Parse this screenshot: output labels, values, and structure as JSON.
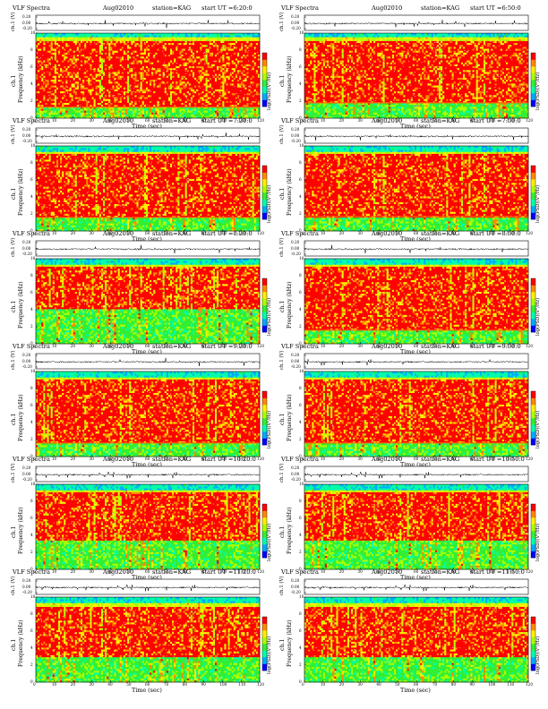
{
  "header": {
    "title": "VLF Spectra",
    "date": "Aug02010",
    "station": "station=KAG",
    "start_prefix": "start UT ="
  },
  "chart_data": [
    {
      "type": "heatmap",
      "start_ut": "6:20:0",
      "xlabel": "Time (sec)",
      "ylabel": "Frequency (kHz)",
      "ch_label": "ch.1",
      "line_ylabel": "ch.1 (V)",
      "colorbar_label": "log(PSD)(V²/Hz)",
      "xlim": [
        0,
        120
      ],
      "ylim": [
        0,
        10
      ],
      "xticks": [
        0,
        10,
        20,
        30,
        40,
        50,
        60,
        70,
        80,
        90,
        100,
        110,
        120
      ],
      "yticks": [
        0,
        2,
        4,
        6,
        8,
        10
      ],
      "line_yticks": [
        "0.20",
        "0.00",
        "-0.20"
      ],
      "colormap": [
        "#0000ff",
        "#00aaff",
        "#00ffaa",
        "#33ee33",
        "#aaff00",
        "#ffee00",
        "#ff8800",
        "#ff0000"
      ],
      "band_high_khz": 9.1,
      "band_low_khz": 1.3,
      "hum_khz": 1.3
    },
    {
      "type": "heatmap",
      "start_ut": "6:50:0",
      "xlabel": "Time (sec)",
      "ylabel": "Frequency (kHz)",
      "ch_label": "ch.1",
      "line_ylabel": "ch.1 (V)",
      "colorbar_label": "log(PSD)(V²/Hz)",
      "xlim": [
        0,
        120
      ],
      "ylim": [
        0,
        10
      ],
      "xticks": [
        0,
        10,
        20,
        30,
        40,
        50,
        60,
        70,
        80,
        90,
        100,
        110,
        120
      ],
      "yticks": [
        0,
        2,
        4,
        6,
        8,
        10
      ],
      "line_yticks": [
        "0.20",
        "0.00",
        "-0.20"
      ],
      "colormap": [
        "#0000ff",
        "#00aaff",
        "#00ffaa",
        "#33ee33",
        "#aaff00",
        "#ffee00",
        "#ff8800",
        "#ff0000"
      ],
      "band_high_khz": 9.1,
      "band_low_khz": 1.8,
      "hum_khz": 1.8
    },
    {
      "type": "heatmap",
      "start_ut": "7:20:0",
      "xlabel": "Time (sec)",
      "ylabel": "Frequency (kHz)",
      "ch_label": "ch.1",
      "line_ylabel": "ch.1 (V)",
      "colorbar_label": "log(PSD)(V²/Hz)",
      "xlim": [
        0,
        120
      ],
      "ylim": [
        0,
        10
      ],
      "xticks": [
        0,
        10,
        20,
        30,
        40,
        50,
        60,
        70,
        80,
        90,
        100,
        110,
        120
      ],
      "yticks": [
        0,
        2,
        4,
        6,
        8,
        10
      ],
      "line_yticks": [
        "0.20",
        "0.00",
        "-0.20"
      ],
      "colormap": [
        "#0000ff",
        "#00aaff",
        "#00ffaa",
        "#33ee33",
        "#aaff00",
        "#ffee00",
        "#ff8800",
        "#ff0000"
      ],
      "band_high_khz": 9.0,
      "band_low_khz": 1.6,
      "hum_khz": 1.6
    },
    {
      "type": "heatmap",
      "start_ut": "7:50:0",
      "xlabel": "Time (sec)",
      "ylabel": "Frequency (kHz)",
      "ch_label": "ch.1",
      "line_ylabel": "ch.1 (V)",
      "colorbar_label": "log(PSD)(V²/Hz)",
      "xlim": [
        0,
        120
      ],
      "ylim": [
        0,
        10
      ],
      "xticks": [
        0,
        10,
        20,
        30,
        40,
        50,
        60,
        70,
        80,
        90,
        100,
        110,
        120
      ],
      "yticks": [
        0,
        2,
        4,
        6,
        8,
        10
      ],
      "line_yticks": [
        "0.20",
        "0.00",
        "-0.20"
      ],
      "colormap": [
        "#0000ff",
        "#00aaff",
        "#00ffaa",
        "#33ee33",
        "#aaff00",
        "#ffee00",
        "#ff8800",
        "#ff0000"
      ],
      "band_high_khz": 9.0,
      "band_low_khz": 1.7,
      "hum_khz": 1.7
    },
    {
      "type": "heatmap",
      "start_ut": "8:20:0",
      "xlabel": "Time (sec)",
      "ylabel": "Frequency (kHz)",
      "ch_label": "ch.1",
      "line_ylabel": "ch.1 (V)",
      "colorbar_label": "log(PSD)(V²/Hz)",
      "xlim": [
        0,
        120
      ],
      "ylim": [
        0,
        10
      ],
      "xticks": [
        0,
        10,
        20,
        30,
        40,
        50,
        60,
        70,
        80,
        90,
        100,
        110,
        120
      ],
      "yticks": [
        0,
        2,
        4,
        6,
        8,
        10
      ],
      "line_yticks": [
        "0.20",
        "0.00",
        "-0.20"
      ],
      "colormap": [
        "#0000ff",
        "#00aaff",
        "#00ffaa",
        "#33ee33",
        "#aaff00",
        "#ffee00",
        "#ff8800",
        "#ff0000"
      ],
      "band_high_khz": 9.0,
      "band_low_khz": 4.0,
      "hum_khz": 0
    },
    {
      "type": "heatmap",
      "start_ut": "8:50:0",
      "xlabel": "Time (sec)",
      "ylabel": "Frequency (kHz)",
      "ch_label": "ch.1",
      "line_ylabel": "ch.1 (V)",
      "colorbar_label": "log(PSD)(V²/Hz)",
      "xlim": [
        0,
        120
      ],
      "ylim": [
        0,
        10
      ],
      "xticks": [
        0,
        10,
        20,
        30,
        40,
        50,
        60,
        70,
        80,
        90,
        100,
        110,
        120
      ],
      "yticks": [
        0,
        2,
        4,
        6,
        8,
        10
      ],
      "line_yticks": [
        "0.20",
        "0.00",
        "-0.20"
      ],
      "colormap": [
        "#0000ff",
        "#00aaff",
        "#00ffaa",
        "#33ee33",
        "#aaff00",
        "#ffee00",
        "#ff8800",
        "#ff0000"
      ],
      "band_high_khz": 9.0,
      "band_low_khz": 1.6,
      "hum_khz": 1.6
    },
    {
      "type": "heatmap",
      "start_ut": "9:20:0",
      "xlabel": "Time (sec)",
      "ylabel": "Frequency (kHz)",
      "ch_label": "ch.1",
      "line_ylabel": "ch.1 (V)",
      "colorbar_label": "log(PSD)(V²/Hz)",
      "xlim": [
        0,
        120
      ],
      "ylim": [
        0,
        10
      ],
      "xticks": [
        0,
        10,
        20,
        30,
        40,
        50,
        60,
        70,
        80,
        90,
        100,
        110,
        120
      ],
      "yticks": [
        0,
        2,
        4,
        6,
        8,
        10
      ],
      "line_yticks": [
        "0.20",
        "0.00",
        "-0.20"
      ],
      "colormap": [
        "#0000ff",
        "#00aaff",
        "#00ffaa",
        "#33ee33",
        "#aaff00",
        "#ffee00",
        "#ff8800",
        "#ff0000"
      ],
      "band_high_khz": 9.0,
      "band_low_khz": 1.6,
      "hum_khz": 1.6
    },
    {
      "type": "heatmap",
      "start_ut": "9:50:0",
      "xlabel": "Time (sec)",
      "ylabel": "Frequency (kHz)",
      "ch_label": "ch.1",
      "line_ylabel": "ch.1 (V)",
      "colorbar_label": "log(PSD)(V²/Hz)",
      "xlim": [
        0,
        120
      ],
      "ylim": [
        0,
        10
      ],
      "xticks": [
        0,
        10,
        20,
        30,
        40,
        50,
        60,
        70,
        80,
        90,
        100,
        110,
        120
      ],
      "yticks": [
        0,
        2,
        4,
        6,
        8,
        10
      ],
      "line_yticks": [
        "0.20",
        "0.00",
        "-0.20"
      ],
      "colormap": [
        "#0000ff",
        "#00aaff",
        "#00ffaa",
        "#33ee33",
        "#aaff00",
        "#ffee00",
        "#ff8800",
        "#ff0000"
      ],
      "band_high_khz": 9.0,
      "band_low_khz": 1.6,
      "hum_khz": 1.6
    },
    {
      "type": "heatmap",
      "start_ut": "10:20:0",
      "xlabel": "Time (sec)",
      "ylabel": "Frequency (kHz)",
      "ch_label": "ch.1",
      "line_ylabel": "ch.1 (V)",
      "colorbar_label": "log(PSD)(V²/Hz)",
      "xlim": [
        0,
        120
      ],
      "ylim": [
        0,
        10
      ],
      "xticks": [
        0,
        10,
        20,
        30,
        40,
        50,
        60,
        70,
        80,
        90,
        100,
        110,
        120
      ],
      "yticks": [
        0,
        2,
        4,
        6,
        8,
        10
      ],
      "line_yticks": [
        "0.20",
        "0.00",
        "-0.20"
      ],
      "colormap": [
        "#0000ff",
        "#00aaff",
        "#00ffaa",
        "#33ee33",
        "#aaff00",
        "#ffee00",
        "#ff8800",
        "#ff0000"
      ],
      "band_high_khz": 9.0,
      "band_low_khz": 3.5,
      "hum_khz": 0
    },
    {
      "type": "heatmap",
      "start_ut": "10:50:0",
      "xlabel": "Time (sec)",
      "ylabel": "Frequency (kHz)",
      "ch_label": "ch.1",
      "line_ylabel": "ch.1 (V)",
      "colorbar_label": "log(PSD)(V²/Hz)",
      "xlim": [
        0,
        120
      ],
      "ylim": [
        0,
        10
      ],
      "xticks": [
        0,
        10,
        20,
        30,
        40,
        50,
        60,
        70,
        80,
        90,
        100,
        110,
        120
      ],
      "yticks": [
        0,
        2,
        4,
        6,
        8,
        10
      ],
      "line_yticks": [
        "0.20",
        "0.00",
        "-0.20"
      ],
      "colormap": [
        "#0000ff",
        "#00aaff",
        "#00ffaa",
        "#33ee33",
        "#aaff00",
        "#ffee00",
        "#ff8800",
        "#ff0000"
      ],
      "band_high_khz": 9.0,
      "band_low_khz": 3.5,
      "hum_khz": 0
    },
    {
      "type": "heatmap",
      "start_ut": "11:20:0",
      "xlabel": "Time (sec)",
      "ylabel": "Frequency (kHz)",
      "ch_label": "ch.1",
      "line_ylabel": "ch.1 (V)",
      "colorbar_label": "log(PSD)(V²/Hz)",
      "xlim": [
        0,
        120
      ],
      "ylim": [
        0,
        10
      ],
      "xticks": [
        0,
        10,
        20,
        30,
        40,
        50,
        60,
        70,
        80,
        90,
        100,
        110,
        120
      ],
      "yticks": [
        0,
        2,
        4,
        6,
        8,
        10
      ],
      "line_yticks": [
        "0.20",
        "0.00",
        "-0.20"
      ],
      "colormap": [
        "#0000ff",
        "#00aaff",
        "#00ffaa",
        "#33ee33",
        "#aaff00",
        "#ffee00",
        "#ff8800",
        "#ff0000"
      ],
      "band_high_khz": 8.9,
      "band_low_khz": 3.0,
      "hum_khz": 0
    },
    {
      "type": "heatmap",
      "start_ut": "11:50:0",
      "xlabel": "Time (sec)",
      "ylabel": "Frequency (kHz)",
      "ch_label": "ch.1",
      "line_ylabel": "ch.1 (V)",
      "colorbar_label": "log(PSD)(V²/Hz)",
      "xlim": [
        0,
        120
      ],
      "ylim": [
        0,
        10
      ],
      "xticks": [
        0,
        10,
        20,
        30,
        40,
        50,
        60,
        70,
        80,
        90,
        100,
        110,
        120
      ],
      "yticks": [
        0,
        2,
        4,
        6,
        8,
        10
      ],
      "line_yticks": [
        "0.20",
        "0.00",
        "-0.20"
      ],
      "colormap": [
        "#0000ff",
        "#00aaff",
        "#00ffaa",
        "#33ee33",
        "#aaff00",
        "#ffee00",
        "#ff8800",
        "#ff0000"
      ],
      "band_high_khz": 8.9,
      "band_low_khz": 3.0,
      "hum_khz": 0
    }
  ]
}
